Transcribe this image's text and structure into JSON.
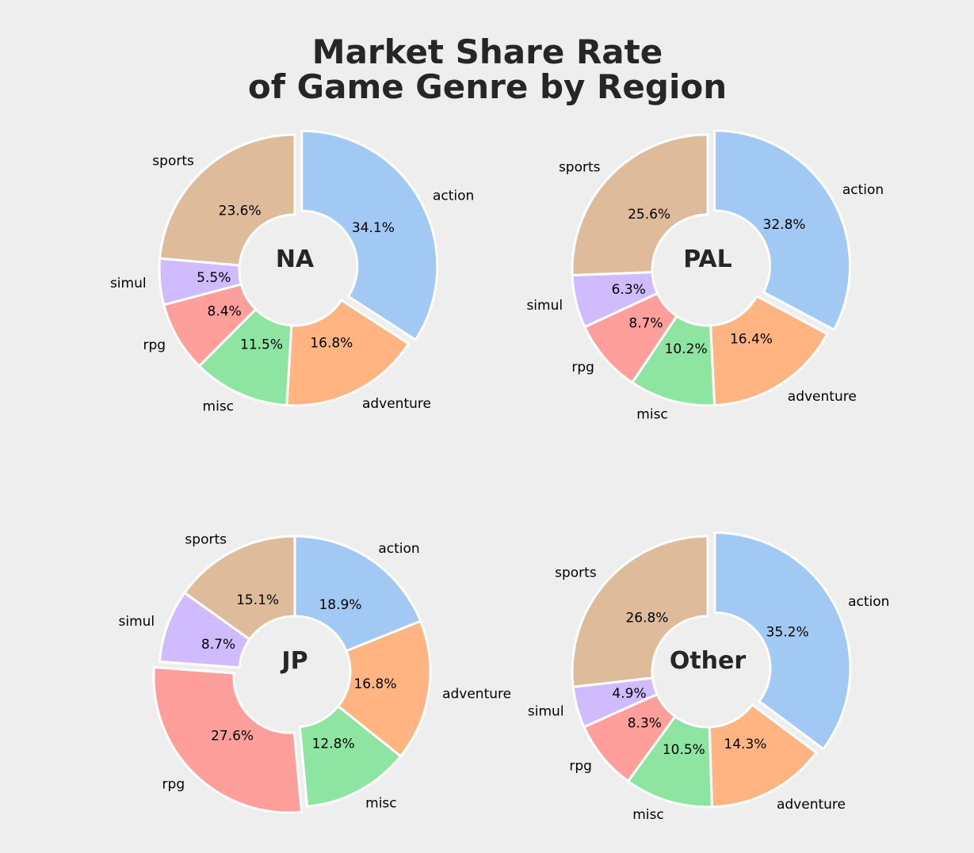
{
  "title_line1": "Market Share Rate",
  "title_line2": "of Game Genre by Region",
  "colors": {
    "action": "#a1c9f4",
    "adventure": "#ffb482",
    "misc": "#8de5a1",
    "rpg": "#ff9f9b",
    "simul": "#d0bbff",
    "sports": "#debb9b",
    "background": "#eeeeee"
  },
  "chart_data": [
    {
      "type": "pie",
      "title": "NA",
      "donut": true,
      "categories": [
        "action",
        "adventure",
        "misc",
        "rpg",
        "simul",
        "sports"
      ],
      "values": [
        34.1,
        16.8,
        11.5,
        8.4,
        5.5,
        23.6
      ],
      "value_labels": [
        "34.1%",
        "16.8%",
        "11.5%",
        "8.4%",
        "5.5%",
        "23.6%"
      ],
      "exploded": "action"
    },
    {
      "type": "pie",
      "title": "PAL",
      "donut": true,
      "categories": [
        "action",
        "adventure",
        "misc",
        "rpg",
        "simul",
        "sports"
      ],
      "values": [
        32.8,
        16.4,
        10.2,
        8.7,
        6.3,
        25.6
      ],
      "value_labels": [
        "32.8%",
        "16.4%",
        "10.2%",
        "8.7%",
        "6.3%",
        "25.6%"
      ],
      "exploded": "action"
    },
    {
      "type": "pie",
      "title": "JP",
      "donut": true,
      "categories": [
        "action",
        "adventure",
        "misc",
        "rpg",
        "simul",
        "sports"
      ],
      "values": [
        18.9,
        16.8,
        12.8,
        27.6,
        8.7,
        15.1
      ],
      "value_labels": [
        "18.9%",
        "16.8%",
        "12.8%",
        "27.6%",
        "8.7%",
        "15.1%"
      ],
      "exploded": "rpg"
    },
    {
      "type": "pie",
      "title": "Other",
      "donut": true,
      "categories": [
        "action",
        "adventure",
        "misc",
        "rpg",
        "simul",
        "sports"
      ],
      "values": [
        35.2,
        14.3,
        10.5,
        8.3,
        4.9,
        26.8
      ],
      "value_labels": [
        "35.2%",
        "14.3%",
        "10.5%",
        "8.3%",
        "4.9%",
        "26.8%"
      ],
      "exploded": "action"
    }
  ]
}
